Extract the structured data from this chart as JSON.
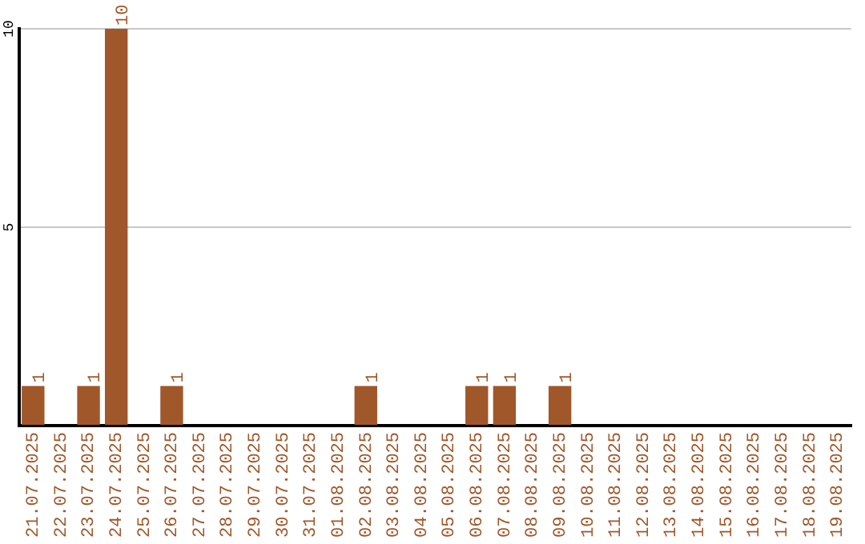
{
  "chart_data": {
    "type": "bar",
    "categories": [
      "21.07.2025",
      "22.07.2025",
      "23.07.2025",
      "24.07.2025",
      "25.07.2025",
      "26.07.2025",
      "27.07.2025",
      "28.07.2025",
      "29.07.2025",
      "30.07.2025",
      "31.07.2025",
      "01.08.2025",
      "02.08.2025",
      "03.08.2025",
      "04.08.2025",
      "05.08.2025",
      "06.08.2025",
      "07.08.2025",
      "08.08.2025",
      "09.08.2025",
      "10.08.2025",
      "11.08.2025",
      "12.08.2025",
      "13.08.2025",
      "14.08.2025",
      "15.08.2025",
      "16.08.2025",
      "17.08.2025",
      "18.08.2025",
      "19.08.2025"
    ],
    "values": [
      1,
      0,
      1,
      10,
      0,
      1,
      0,
      0,
      0,
      0,
      0,
      0,
      1,
      0,
      0,
      0,
      1,
      1,
      0,
      1,
      0,
      0,
      0,
      0,
      0,
      0,
      0,
      0,
      0,
      0
    ],
    "value_labels": [
      "1",
      null,
      "1",
      "10",
      null,
      "1",
      null,
      null,
      null,
      null,
      null,
      null,
      "1",
      null,
      null,
      null,
      "1",
      "1",
      null,
      "1",
      null,
      null,
      null,
      null,
      null,
      null,
      null,
      null,
      null,
      null
    ],
    "color": "#a0572a",
    "ylim": [
      0,
      10
    ],
    "yticks": [
      {
        "value": 0,
        "label": null
      },
      5,
      10
    ],
    "grid": "y",
    "legend": false
  }
}
